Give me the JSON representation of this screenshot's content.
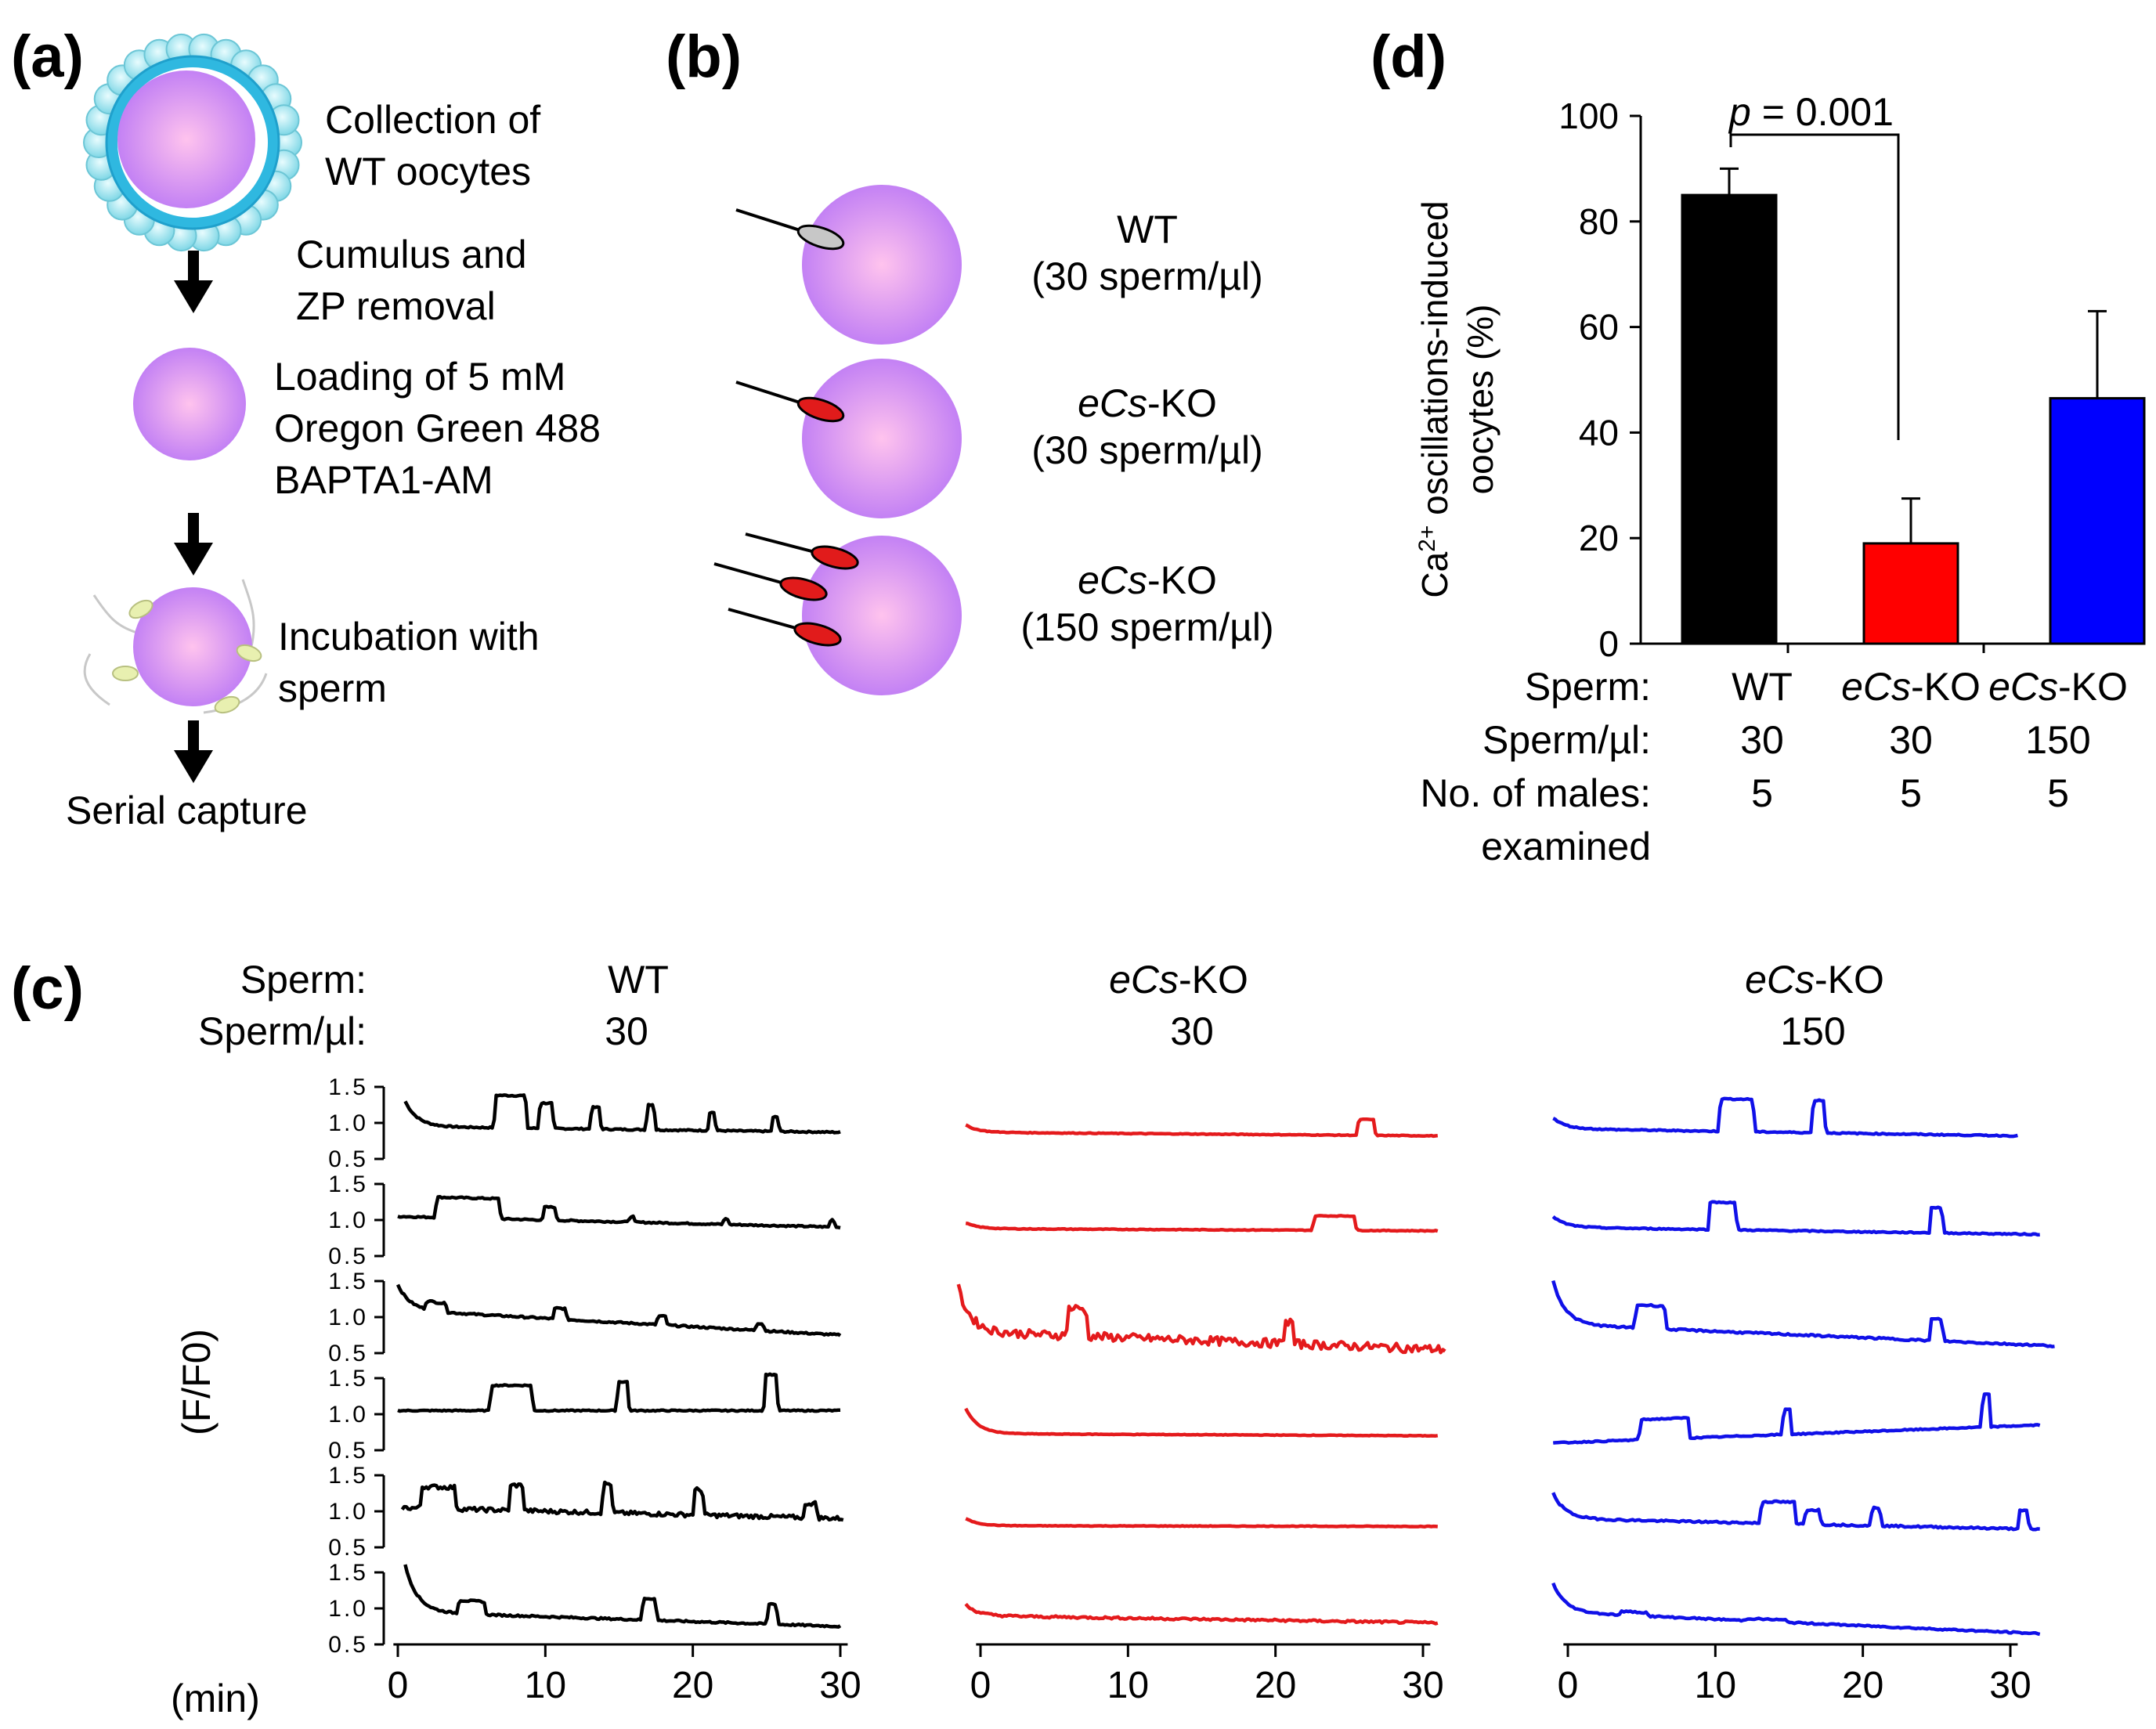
{
  "panel_a": {
    "label": "(a)",
    "step1": [
      "Collection of",
      "WT oocytes"
    ],
    "step2": [
      "Cumulus and",
      "ZP removal"
    ],
    "step3": [
      "Loading of 5 mM",
      "Oregon Green 488",
      "BAPTA1-AM"
    ],
    "step4": [
      "Incubation with",
      "sperm"
    ],
    "step5": "Serial capture"
  },
  "panel_b": {
    "label": "(b)",
    "rows": [
      {
        "genotype_italic": "",
        "genotype_rest": "WT",
        "conc": "(30 sperm/µl)",
        "sperm_count": 1,
        "sperm_color": "#c7c7c7"
      },
      {
        "genotype_italic": "eCs",
        "genotype_rest": "-KO",
        "conc": "(30 sperm/µl)",
        "sperm_count": 1,
        "sperm_color": "#e11b1b"
      },
      {
        "genotype_italic": "eCs",
        "genotype_rest": "-KO",
        "conc": "(150 sperm/µl)",
        "sperm_count": 3,
        "sperm_color": "#e11b1b"
      }
    ]
  },
  "panel_c": {
    "label": "(c)",
    "row_label_sperm": "Sperm:",
    "row_label_conc": "Sperm/µl:",
    "y_axis_label": "(F/F0)",
    "x_unit_label": "(min)",
    "x_ticks": [
      "0",
      "10",
      "20",
      "30"
    ],
    "y_ticks": [
      "1.5",
      "1.0",
      "0.5"
    ],
    "columns": [
      {
        "genotype_italic": "",
        "genotype_rest": "WT",
        "conc": "30",
        "color": "#000000"
      },
      {
        "genotype_italic": "eCs",
        "genotype_rest": "-KO",
        "conc": "30",
        "color": "#e41a1c"
      },
      {
        "genotype_italic": "eCs",
        "genotype_rest": "-KO",
        "conc": "150",
        "color": "#1010e8"
      }
    ]
  },
  "chart_data": {
    "type": "bar",
    "label": "(d)",
    "ylabel_line1_pre": "Ca",
    "ylabel_line1_sup": "2+",
    "ylabel_line1_post": " oscillations-induced",
    "ylabel_line2": "oocytes (%)",
    "ylim": [
      0,
      100
    ],
    "y_ticks": [
      "0",
      "20",
      "40",
      "60",
      "80",
      "100"
    ],
    "categories": [
      "WT",
      "eCs-KO",
      "eCs-KO"
    ],
    "values": [
      85,
      19,
      46.5
    ],
    "errors": [
      5,
      8.5,
      16.5
    ],
    "colors": [
      "#000000",
      "#ff0000",
      "#0000ff"
    ],
    "significance": {
      "p_label": "p",
      "p_value": " = 0.001"
    },
    "table": {
      "row_labels": [
        "Sperm:",
        "Sperm/µl:",
        "No. of males:",
        "examined"
      ],
      "sperm": [
        {
          "italic": "",
          "rest": "WT"
        },
        {
          "italic": "eCs",
          "rest": "-KO"
        },
        {
          "italic": "eCs",
          "rest": "-KO"
        }
      ],
      "conc": [
        "30",
        "30",
        "150"
      ],
      "males": [
        "5",
        "5",
        "5"
      ]
    }
  }
}
